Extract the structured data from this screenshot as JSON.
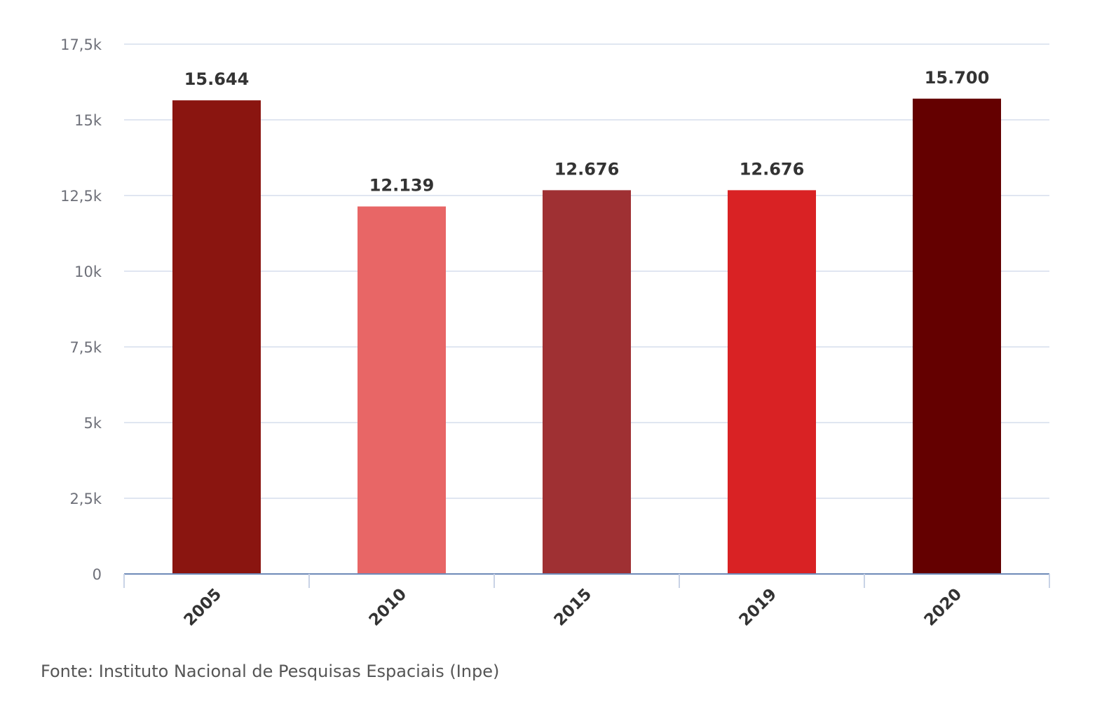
{
  "chart_data": {
    "type": "bar",
    "categories": [
      "2005",
      "2010",
      "2015",
      "2019",
      "2020"
    ],
    "values": [
      15644,
      12139,
      12676,
      12676,
      15700
    ],
    "value_labels": [
      "15.644",
      "12.139",
      "12.676",
      "12.676",
      "15.700"
    ],
    "bar_colors": [
      "#8a1510",
      "#e86666",
      "#9f3033",
      "#d92224",
      "#640000"
    ],
    "ylim": [
      0,
      17500
    ],
    "y_ticks": [
      {
        "value": 0,
        "label": "0"
      },
      {
        "value": 2500,
        "label": "2,5k"
      },
      {
        "value": 5000,
        "label": "5k"
      },
      {
        "value": 7500,
        "label": "7,5k"
      },
      {
        "value": 10000,
        "label": "10k"
      },
      {
        "value": 12500,
        "label": "12,5k"
      },
      {
        "value": 15000,
        "label": "15k"
      },
      {
        "value": 17500,
        "label": "17,5k"
      }
    ],
    "grid": true,
    "legend": false,
    "title": "",
    "xlabel": "",
    "ylabel": ""
  },
  "source": "Fonte: Instituto Nacional de Pesquisas Espaciais (Inpe)"
}
